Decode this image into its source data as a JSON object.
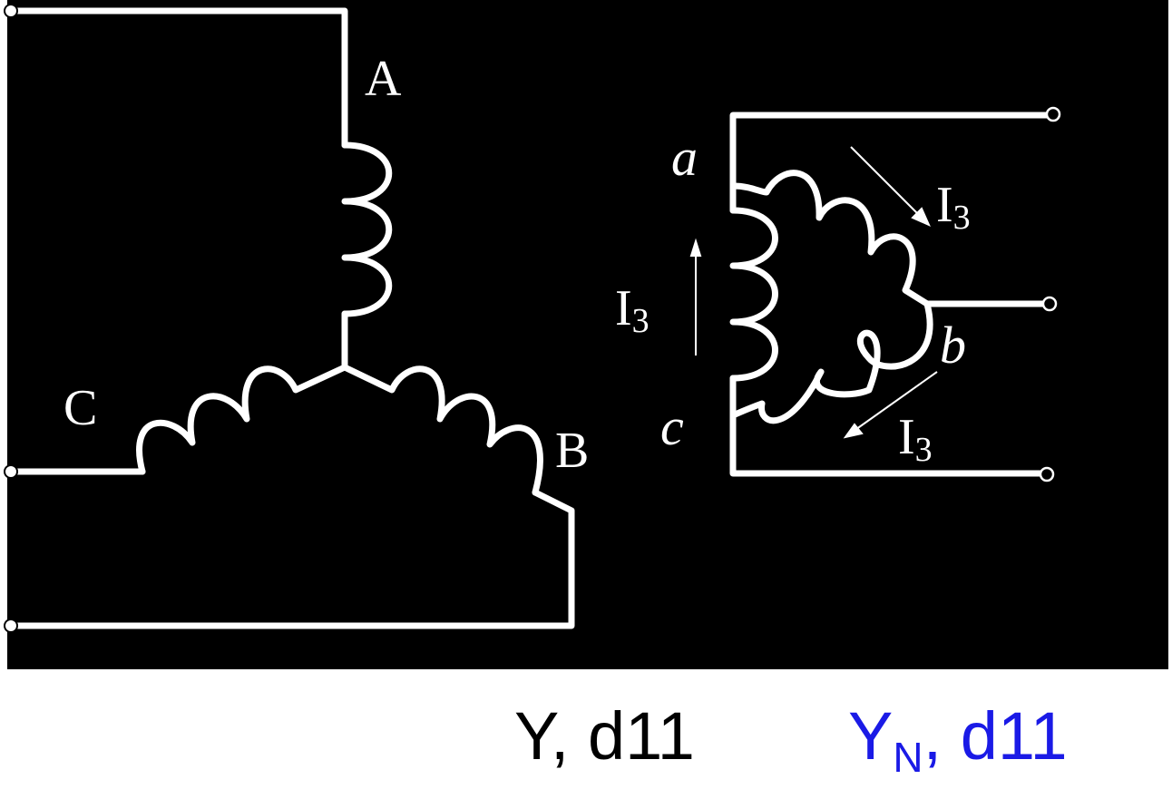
{
  "diagram": {
    "background_color": "#000000",
    "line_color": "#ffffff",
    "primary_labels": {
      "a": "A",
      "b": "B",
      "c": "C"
    },
    "secondary_labels": {
      "a": "a",
      "b": "b",
      "c": "c"
    },
    "current_labels": [
      {
        "base": "I",
        "sub": "3"
      },
      {
        "base": "I",
        "sub": "3"
      },
      {
        "base": "I",
        "sub": "3"
      }
    ]
  },
  "captions": {
    "first": "Y, d11",
    "second_base": "Y",
    "second_sub": "N",
    "second_rest": ", d11",
    "first_color": "#000000",
    "second_color": "#1a1ae6"
  }
}
